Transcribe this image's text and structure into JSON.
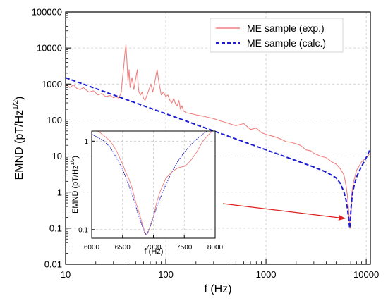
{
  "chart_data": [
    {
      "type": "line",
      "xlabel": "f (Hz)",
      "ylabel_main": "EMND (pT/Hz",
      "ylabel_sup": "1/2",
      "ylabel_tail": ")",
      "xscale": "log",
      "yscale": "log",
      "xlim": [
        10,
        11000
      ],
      "ylim": [
        0.01,
        100000
      ],
      "xticks": [
        {
          "value": 10,
          "label": "10"
        },
        {
          "value": 100,
          "label": "100"
        },
        {
          "value": 1000,
          "label": "1000"
        },
        {
          "value": 10000,
          "label": "10000"
        }
      ],
      "yticks": [
        {
          "value": 100000,
          "label": "100000"
        },
        {
          "value": 10000,
          "label": "10000"
        },
        {
          "value": 1000,
          "label": "1000"
        },
        {
          "value": 100,
          "label": "100"
        },
        {
          "value": 10,
          "label": "10"
        },
        {
          "value": 1,
          "label": "1"
        },
        {
          "value": 0.1,
          "label": "0.1"
        },
        {
          "value": 0.01,
          "label": "0.01"
        }
      ],
      "grid": true,
      "legend_position": "top-right",
      "series": [
        {
          "name": "ME sample (exp.)",
          "color": "#f08080",
          "style": "solid",
          "x": [
            10,
            11,
            12,
            13,
            14,
            15,
            17,
            19,
            21,
            23,
            25,
            28,
            30,
            32,
            34,
            36,
            37,
            38,
            39,
            40,
            41,
            42,
            43,
            44,
            46,
            48,
            50,
            52,
            53,
            54,
            56,
            58,
            60,
            62,
            65,
            68,
            71,
            74,
            76,
            78,
            80,
            82,
            84,
            86,
            88,
            90,
            95,
            100,
            105,
            110,
            115,
            120,
            125,
            130,
            135,
            140,
            145,
            150,
            160,
            180,
            200,
            230,
            260,
            300,
            350,
            400,
            500,
            600,
            700,
            800,
            900,
            1000,
            1200,
            1400,
            1600,
            1800,
            2000,
            2200,
            2500,
            2800,
            3000,
            3500,
            4000,
            4500,
            5000,
            5500,
            6000,
            6300,
            6500,
            6700,
            6800,
            6900,
            7000,
            7100,
            7200,
            7500,
            8000,
            9000,
            10000,
            11000
          ],
          "y": [
            1000,
            800,
            950,
            750,
            700,
            800,
            600,
            650,
            500,
            550,
            450,
            480,
            420,
            450,
            400,
            600,
            1500,
            3000,
            7000,
            12000,
            4000,
            1200,
            2500,
            800,
            1500,
            700,
            1400,
            2500,
            900,
            600,
            500,
            600,
            400,
            350,
            500,
            700,
            1000,
            600,
            800,
            1200,
            1800,
            2500,
            1500,
            1000,
            700,
            500,
            600,
            450,
            500,
            350,
            300,
            400,
            280,
            250,
            350,
            200,
            250,
            180,
            160,
            150,
            140,
            130,
            120,
            110,
            95,
            85,
            70,
            80,
            55,
            60,
            45,
            40,
            35,
            30,
            25,
            24,
            22,
            20,
            15,
            14,
            12,
            10,
            9,
            7,
            6,
            4.5,
            3,
            1.5,
            0.8,
            0.3,
            0.15,
            0.1,
            0.15,
            0.4,
            1.0,
            2.0,
            4.0,
            7.0,
            9.0,
            12.0
          ]
        },
        {
          "name": "ME sample (calc.)",
          "color": "#1c1cd1",
          "style": "dashed",
          "x": [
            10,
            30,
            100,
            300,
            1000,
            2000,
            3000,
            4000,
            5000,
            5500,
            6000,
            6300,
            6500,
            6700,
            6800,
            6850,
            6900,
            6950,
            7000,
            7100,
            7300,
            7600,
            8000,
            8500,
            9000,
            10000,
            11000
          ],
          "y": [
            1500,
            500,
            150,
            50,
            15,
            7.5,
            5,
            3.6,
            2.5,
            1.8,
            1.0,
            0.6,
            0.35,
            0.17,
            0.12,
            0.1,
            0.12,
            0.17,
            0.25,
            0.45,
            0.9,
            1.6,
            2.6,
            3.8,
            5.2,
            9.0,
            16.0
          ]
        }
      ]
    },
    {
      "type": "line",
      "xlabel": "f (Hz)",
      "ylabel_main": "EMND (pT/Hz",
      "ylabel_sup": "1/2",
      "ylabel_tail": ")",
      "xscale": "linear",
      "yscale": "log",
      "xlim": [
        6000,
        8000
      ],
      "ylim": [
        0.08,
        1.3
      ],
      "xticks": [
        {
          "value": 6000,
          "label": "6000"
        },
        {
          "value": 6500,
          "label": "6500"
        },
        {
          "value": 7000,
          "label": "7000"
        },
        {
          "value": 7500,
          "label": "7500"
        },
        {
          "value": 8000,
          "label": "8000"
        }
      ],
      "yticks": [
        {
          "value": 1,
          "label": "1"
        },
        {
          "value": 0.1,
          "label": "0.1"
        }
      ],
      "grid": true,
      "series": [
        {
          "color": "#f08080",
          "style": "solid",
          "x": [
            6000,
            6100,
            6200,
            6300,
            6400,
            6500,
            6550,
            6600,
            6650,
            6700,
            6750,
            6800,
            6830,
            6860,
            6880,
            6900,
            6930,
            6970,
            7000,
            7050,
            7100,
            7200,
            7300,
            7400,
            7500,
            7550,
            7600,
            7700,
            7800,
            7900,
            8000
          ],
          "y": [
            1.5,
            1.3,
            1.15,
            1.0,
            0.78,
            0.55,
            0.45,
            0.38,
            0.3,
            0.22,
            0.17,
            0.13,
            0.11,
            0.095,
            0.088,
            0.09,
            0.1,
            0.12,
            0.14,
            0.2,
            0.26,
            0.38,
            0.45,
            0.5,
            0.52,
            0.55,
            0.6,
            0.75,
            1.0,
            1.2,
            1.4
          ]
        },
        {
          "color": "#1c1cd1",
          "style": "dotted",
          "x": [
            6000,
            6100,
            6200,
            6300,
            6400,
            6500,
            6600,
            6700,
            6750,
            6800,
            6850,
            6880,
            6900,
            6950,
            7000,
            7100,
            7200,
            7300,
            7400,
            7500,
            7600,
            7700,
            7800,
            7900,
            8000
          ],
          "y": [
            1.2,
            1.1,
            1.0,
            0.85,
            0.65,
            0.48,
            0.32,
            0.2,
            0.15,
            0.12,
            0.095,
            0.088,
            0.09,
            0.11,
            0.14,
            0.22,
            0.32,
            0.45,
            0.6,
            0.75,
            0.9,
            1.05,
            1.2,
            1.35,
            1.45
          ]
        }
      ]
    }
  ]
}
